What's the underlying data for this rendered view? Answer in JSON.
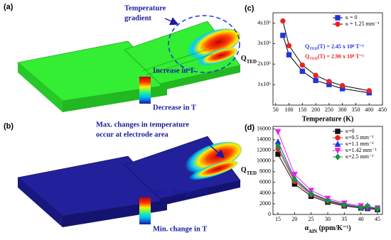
{
  "panels": [
    {
      "label": "(a)",
      "callout": [
        "Temperature",
        "gradient"
      ],
      "scale_high": "Increase in T",
      "scale_low": "Decrease in T"
    },
    {
      "label": "(b)",
      "callout": [
        "Max. changes in temperature",
        "occur at electrode area"
      ],
      "scale_high": "Max. change in T",
      "scale_low": "Min. change in T"
    }
  ],
  "chart_data": [
    {
      "type": "line",
      "panel_label": "(c)",
      "xlabel": "Temperature (K)",
      "ylabel": {
        "text": "Q",
        "sub": "TED"
      },
      "x": [
        77,
        100,
        150,
        200,
        250,
        300,
        400
      ],
      "line_color": "#000000",
      "series": [
        {
          "name": "κ = 0",
          "color": "#2233dd",
          "marker": "square",
          "values": [
            3400000,
            2450000,
            1650000,
            1200000,
            1000000,
            800000,
            600000
          ]
        },
        {
          "name": "κ = 1.25 mm⁻¹",
          "color": "#ee2222",
          "marker": "circle",
          "values": [
            4100000,
            2900000,
            1950000,
            1450000,
            1150000,
            950000,
            700000
          ]
        }
      ],
      "annotations": [
        {
          "text": "Q",
          "sub": "TED",
          "rest": "(T) = 2.45 x 10⁸ T⁻¹",
          "color": "#2233dd"
        },
        {
          "text": "Q",
          "sub": "TED",
          "rest": "(T) = 2.90 x 10⁸ T⁻¹",
          "color": "#ee2222"
        }
      ],
      "xlim": [
        40,
        450
      ],
      "xticks": [
        50,
        100,
        150,
        200,
        250,
        300,
        350,
        400,
        450
      ],
      "ylim": [
        0,
        4500000
      ],
      "yticks": [
        {
          "value": 1000000,
          "label": "1x10⁶"
        },
        {
          "value": 2000000,
          "label": "2x10⁶"
        },
        {
          "value": 3000000,
          "label": "3x10⁶"
        },
        {
          "value": 4000000,
          "label": "4x10⁶"
        }
      ],
      "legend": "upper-right"
    },
    {
      "type": "line",
      "panel_label": "(d)",
      "xlabel": {
        "text": "α",
        "sub": "AlN",
        "rest": " (ppm/K⁻¹)"
      },
      "ylabel": {
        "text": "Q",
        "sub": "TED"
      },
      "x": [
        15,
        20,
        25,
        30,
        35,
        40,
        42,
        45
      ],
      "series": [
        {
          "name": "κ=0",
          "color": "#111111",
          "marker": "square",
          "values": [
            11300,
            5700,
            3400,
            2300,
            1600,
            1200,
            1100,
            900
          ]
        },
        {
          "name": "κ=0.5 mm⁻¹",
          "color": "#ee2222",
          "marker": "circle",
          "values": [
            12300,
            6200,
            3700,
            2500,
            1700,
            1300,
            1200,
            1000
          ]
        },
        {
          "name": "κ=1.1 mm⁻¹",
          "color": "#2233dd",
          "marker": "triangle",
          "values": [
            13600,
            6800,
            4000,
            2700,
            1900,
            1400,
            1300,
            1100
          ]
        },
        {
          "name": "κ=1.42 mm⁻¹",
          "color": "#ee22ee",
          "marker": "triangle-down",
          "values": [
            15500,
            7500,
            4500,
            3000,
            2100,
            1600,
            1400,
            1200
          ]
        },
        {
          "name": "κ=2.5 mm⁻¹",
          "color": "#119933",
          "marker": "diamond",
          "values": [
            12800,
            6500,
            3900,
            2600,
            1800,
            1300,
            1600,
            1100
          ]
        }
      ],
      "xlim": [
        13.5,
        46.5
      ],
      "xticks": [
        15,
        20,
        25,
        30,
        35,
        40,
        45
      ],
      "ylim": [
        0,
        16500
      ],
      "yticks": [
        0,
        2000,
        4000,
        6000,
        8000,
        10000,
        12000,
        14000,
        16000
      ],
      "legend": "upper-right"
    }
  ]
}
